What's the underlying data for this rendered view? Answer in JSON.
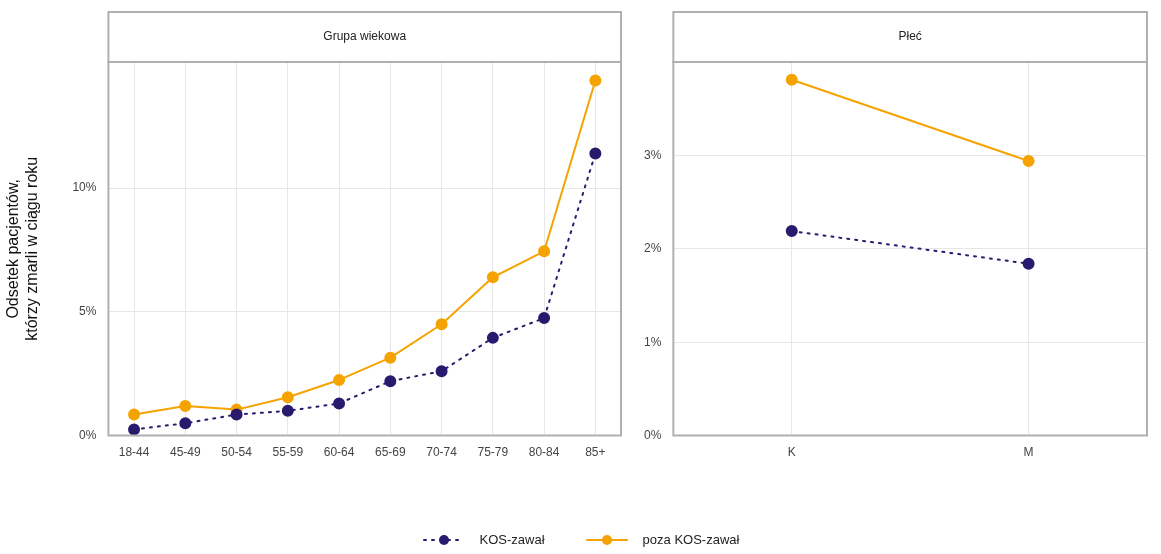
{
  "chart_data": [
    {
      "type": "line",
      "title": "Grupa wiekowa",
      "ylabel": "Odsetek pacjentów,\nktórzy zmarli w ciągu roku",
      "categories": [
        "18-44",
        "45-49",
        "50-54",
        "55-59",
        "60-64",
        "65-69",
        "70-74",
        "75-79",
        "80-84",
        "85+"
      ],
      "series": [
        {
          "name": "KOS-zawał",
          "color": "#2a1a6e",
          "line_style": "dotted",
          "values": [
            0.25,
            0.5,
            0.85,
            1.0,
            1.3,
            2.2,
            2.6,
            3.95,
            4.75,
            11.4
          ]
        },
        {
          "name": "poza KOS-zawał",
          "color": "#f5a300",
          "line_style": "solid",
          "values": [
            0.85,
            1.2,
            1.05,
            1.55,
            2.25,
            3.15,
            4.5,
            6.4,
            7.45,
            14.35
          ]
        }
      ],
      "ylim": [
        0,
        15.1
      ],
      "yticks": [
        {
          "value": 0,
          "label": "0%"
        },
        {
          "value": 5,
          "label": "5%"
        },
        {
          "value": 10,
          "label": "10%"
        }
      ],
      "grid": true,
      "marker": "circle",
      "legend": "bottom"
    },
    {
      "type": "line",
      "title": "Płeć",
      "categories": [
        "K",
        "M"
      ],
      "series": [
        {
          "name": "KOS-zawał",
          "color": "#2a1a6e",
          "line_style": "dotted",
          "values": [
            2.19,
            1.84
          ]
        },
        {
          "name": "poza KOS-zawał",
          "color": "#f5a300",
          "line_style": "solid",
          "values": [
            3.81,
            2.94
          ]
        }
      ],
      "ylim": [
        0,
        4.0
      ],
      "yticks": [
        {
          "value": 0,
          "label": "0%"
        },
        {
          "value": 1,
          "label": "1%"
        },
        {
          "value": 2,
          "label": "2%"
        },
        {
          "value": 3,
          "label": "3%"
        }
      ],
      "grid": true,
      "marker": "circle",
      "legend": "bottom"
    }
  ]
}
